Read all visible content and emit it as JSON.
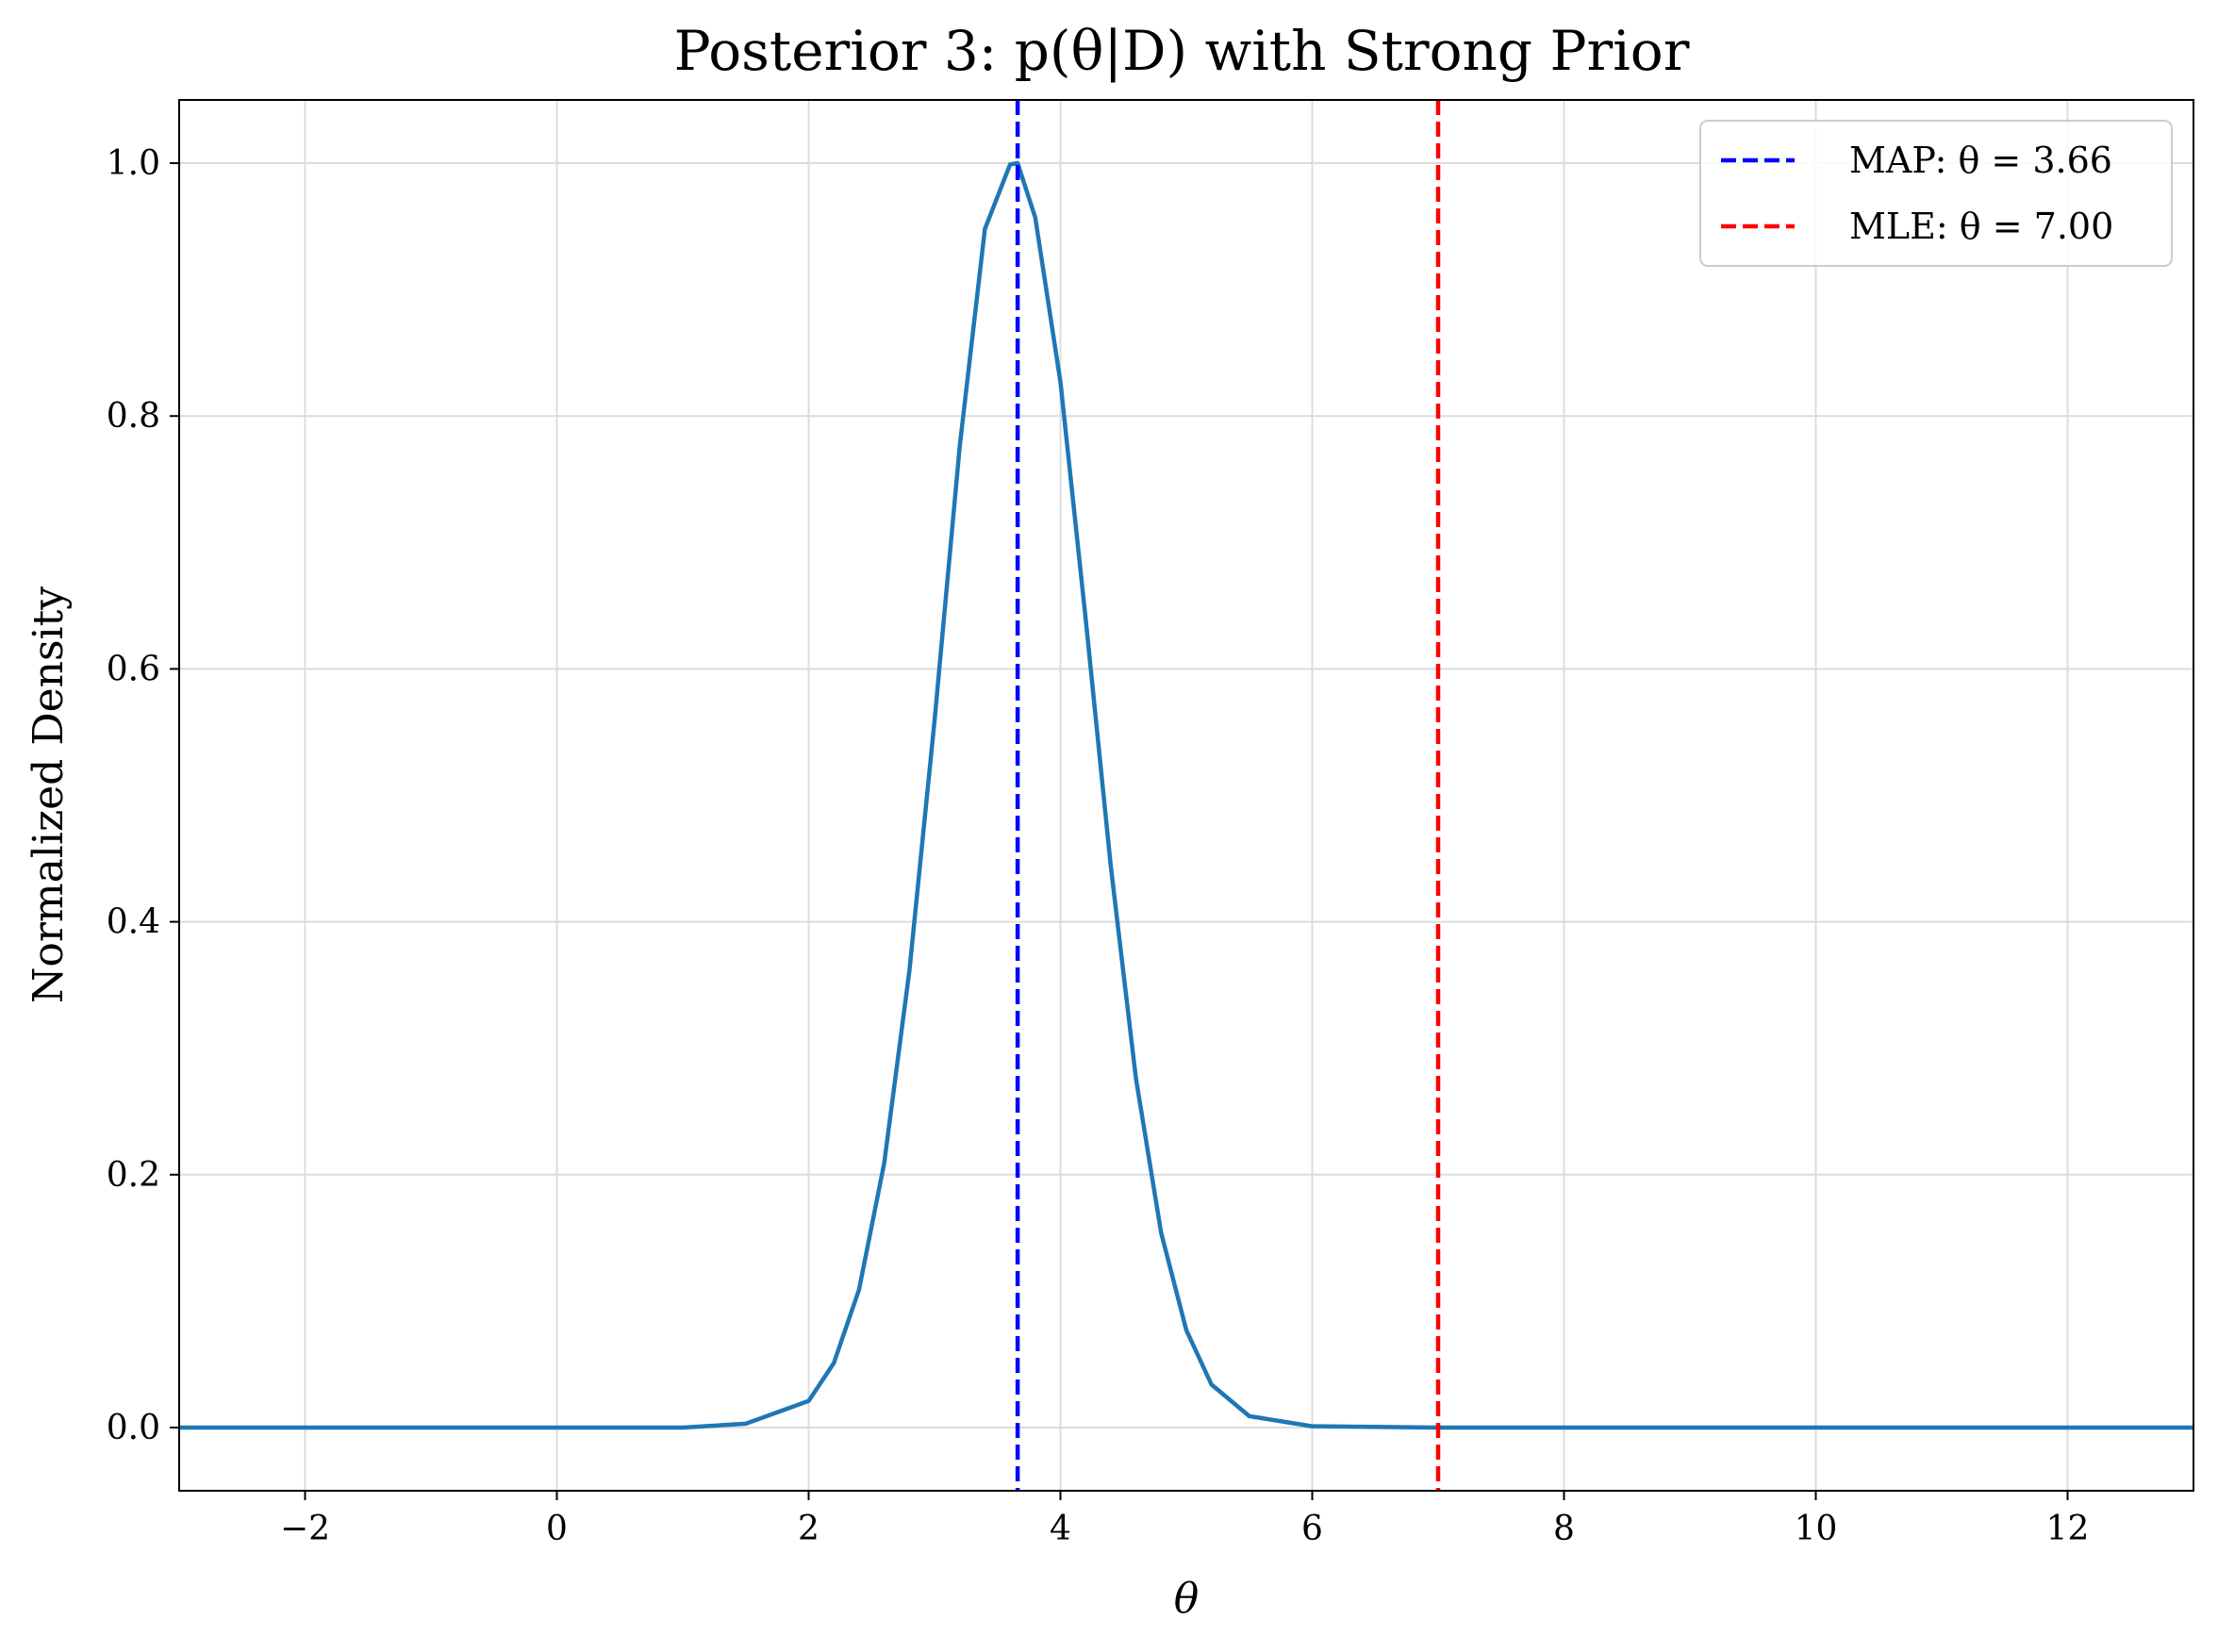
{
  "chart_data": {
    "type": "line",
    "title": "Posterior 3: p(θ|D) with Strong Prior",
    "xlabel": "θ",
    "ylabel": "Normalized Density",
    "xlim": [
      -3,
      13
    ],
    "ylim": [
      -0.05,
      1.05
    ],
    "x_ticks": [
      -2,
      0,
      2,
      4,
      6,
      8,
      10,
      12
    ],
    "x_tick_labels": [
      "−2",
      "0",
      "2",
      "4",
      "6",
      "8",
      "10",
      "12"
    ],
    "y_ticks": [
      0.0,
      0.2,
      0.4,
      0.6,
      0.8,
      1.0
    ],
    "y_tick_labels": [
      "0.0",
      "0.2",
      "0.4",
      "0.6",
      "0.8",
      "1.0"
    ],
    "grid": true,
    "legend_position": "top-right",
    "series": [
      {
        "color": "#1f77b4",
        "x": [
          -3,
          -2,
          -1,
          0,
          1,
          1.5,
          2,
          2.2,
          2.4,
          2.6,
          2.8,
          3.0,
          3.2,
          3.4,
          3.6,
          3.66,
          3.8,
          4.0,
          4.2,
          4.4,
          4.6,
          4.8,
          5.0,
          5.2,
          5.5,
          6,
          7,
          8,
          9,
          10,
          11,
          12,
          13
        ],
        "y": [
          0.0,
          0.0,
          0.0,
          0.0,
          0.0,
          0.003,
          0.021,
          0.051,
          0.109,
          0.209,
          0.361,
          0.559,
          0.776,
          0.948,
          0.999,
          1.0,
          0.957,
          0.827,
          0.64,
          0.444,
          0.276,
          0.154,
          0.077,
          0.034,
          0.009,
          0.001,
          0.0,
          0.0,
          0.0,
          0.0,
          0.0,
          0.0,
          0.0
        ]
      }
    ],
    "vlines": [
      {
        "name": "MAP",
        "label": "MAP: θ = 3.66",
        "x": 3.66,
        "color": "#0000ff",
        "style": "dashed"
      },
      {
        "name": "MLE",
        "label": "MLE: θ = 7.00",
        "x": 7.0,
        "color": "#ff0000",
        "style": "dashed"
      }
    ]
  }
}
